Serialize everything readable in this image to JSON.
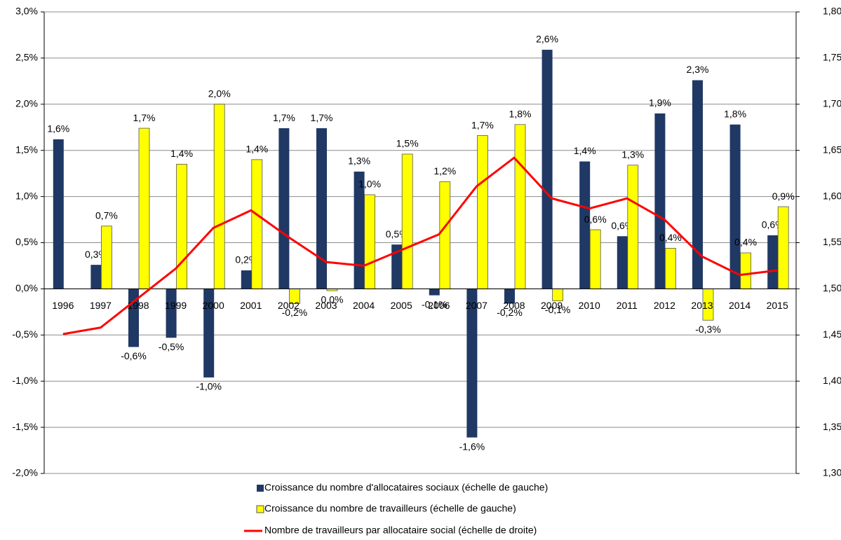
{
  "chart_data": {
    "type": "bar",
    "categories": [
      "1996",
      "1997",
      "1998",
      "1999",
      "2000",
      "2001",
      "2002",
      "2003",
      "2004",
      "2005",
      "2006",
      "2007",
      "2008",
      "2009",
      "2010",
      "2011",
      "2012",
      "2013",
      "2014",
      "2015"
    ],
    "series": [
      {
        "name": "Croissance du nombre d'allocataires sociaux (échelle de gauche)",
        "color": "#203864",
        "values": [
          1.62,
          0.26,
          -0.63,
          -0.53,
          -0.96,
          0.2,
          1.74,
          1.74,
          1.27,
          0.48,
          -0.07,
          -1.61,
          -0.16,
          2.59,
          1.38,
          0.57,
          1.9,
          2.26,
          1.78,
          0.58
        ],
        "value_labels": [
          "1,6%",
          "0,3%",
          "-0,6%",
          "-0,5%",
          "-1,0%",
          "0,2%",
          "1,7%",
          "1,7%",
          "1,3%",
          "0,5%",
          "-0,1%",
          "-1,6%",
          "-0,2%",
          "2,6%",
          "1,4%",
          "0,6%",
          "1,9%",
          "2,3%",
          "1,8%",
          "0,6%"
        ]
      },
      {
        "name": "Croissance du nombre de travailleurs (échelle de gauche)",
        "color": "#ffff00",
        "values": [
          null,
          0.68,
          1.74,
          1.35,
          2.0,
          1.4,
          -0.16,
          -0.02,
          1.02,
          1.46,
          1.16,
          1.66,
          1.78,
          -0.13,
          0.64,
          1.34,
          0.44,
          -0.34,
          0.39,
          0.89
        ],
        "value_labels": [
          null,
          "0,7%",
          "1,7%",
          "1,4%",
          "2,0%",
          "1,4%",
          "-0,2%",
          "0,0%",
          "1,0%",
          "1,5%",
          "1,2%",
          "1,7%",
          "1,8%",
          "-0,1%",
          "0,6%",
          "1,3%",
          "0,4%",
          "-0,3%",
          "0,4%",
          "0,9%"
        ]
      },
      {
        "name": "Nombre de travailleurs par allocataire social (échelle de droite)",
        "color": "#ff0000",
        "type": "line",
        "axis": "y2",
        "values": [
          1.451,
          1.458,
          1.49,
          1.522,
          1.566,
          1.585,
          1.556,
          1.529,
          1.525,
          1.542,
          1.559,
          1.611,
          1.642,
          1.598,
          1.587,
          1.598,
          1.575,
          1.535,
          1.515,
          1.52
        ]
      }
    ],
    "ylim": [
      -2.0,
      3.0
    ],
    "yticks": [
      {
        "value": -2.0,
        "label": "-2,0%"
      },
      {
        "value": -1.5,
        "label": "-1,5%"
      },
      {
        "value": -1.0,
        "label": "-1,0%"
      },
      {
        "value": -0.5,
        "label": "-0,5%"
      },
      {
        "value": 0,
        "label": "0,0%"
      },
      {
        "value": 0.5,
        "label": "0,5%"
      },
      {
        "value": 1.0,
        "label": "1,0%"
      },
      {
        "value": 1.5,
        "label": "1,5%"
      },
      {
        "value": 2.0,
        "label": "2,0%"
      },
      {
        "value": 2.5,
        "label": "2,5%"
      },
      {
        "value": 3.0,
        "label": "3,0%"
      }
    ],
    "y2lim": [
      1.3,
      1.8
    ],
    "y2ticks": [
      {
        "value": 1.3,
        "label": "1,30"
      },
      {
        "value": 1.35,
        "label": "1,35"
      },
      {
        "value": 1.4,
        "label": "1,40"
      },
      {
        "value": 1.45,
        "label": "1,45"
      },
      {
        "value": 1.5,
        "label": "1,50"
      },
      {
        "value": 1.55,
        "label": "1,55"
      },
      {
        "value": 1.6,
        "label": "1,60"
      },
      {
        "value": 1.65,
        "label": "1,65"
      },
      {
        "value": 1.7,
        "label": "1,70"
      },
      {
        "value": 1.75,
        "label": "1,75"
      },
      {
        "value": 1.8,
        "label": "1,80"
      }
    ],
    "grid": true
  }
}
